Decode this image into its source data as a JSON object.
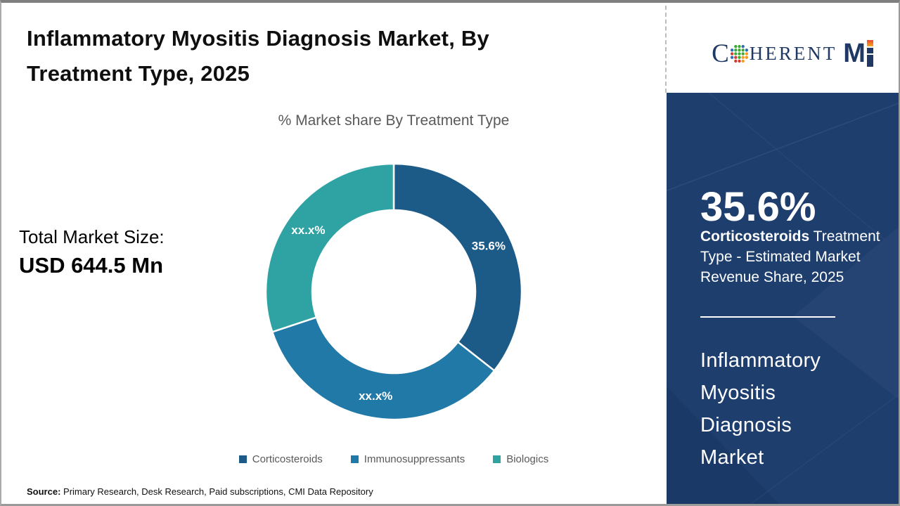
{
  "header": {
    "title": "Inflammatory Myositis Diagnosis Market, By Treatment Type, 2025"
  },
  "brand": {
    "name": "CoherentMI",
    "word_c": "C",
    "word_rest": "HERENT",
    "word_m": "M"
  },
  "chart_data": {
    "type": "pie",
    "subtype": "donut",
    "title": "% Market share By Treatment Type",
    "unit": "%",
    "start_angle_deg": 0,
    "direction": "clockwise",
    "donut_hole_ratio": 0.64,
    "legend_position": "bottom",
    "segments": [
      {
        "name": "Corticosteroids",
        "value": 35.6,
        "label": "35.6%",
        "color": "#1c5a88"
      },
      {
        "name": "Immunosuppressants",
        "value": 34.3,
        "label": "xx.x%",
        "color": "#2179a7"
      },
      {
        "name": "Biologics",
        "value": 30.1,
        "label": "xx.x%",
        "color": "#2fa3a4"
      }
    ]
  },
  "market_size": {
    "label": "Total Market Size:",
    "value": "USD 644.5 Mn"
  },
  "sidebar": {
    "highlight_value": "35.6%",
    "highlight_bold": "Corticosteroids",
    "highlight_rest": " Treatment Type - Estimated Market Revenue Share, 2025",
    "market_name": "Inflammatory\nMyositis\nDiagnosis\nMarket"
  },
  "footer": {
    "source_label": "Source:",
    "source_text": " Primary Research, Desk Research, Paid subscriptions, CMI Data Repository"
  }
}
